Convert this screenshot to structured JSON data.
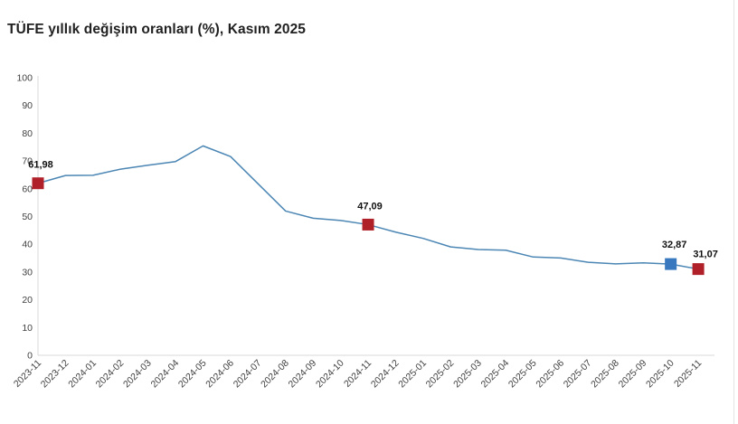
{
  "page": {
    "title": "TÜFE yıllık değişim oranları (%), Kasım 2025"
  },
  "chart_data": {
    "type": "line",
    "title": "TÜFE yıllık değişim oranları (%), Kasım 2025",
    "xlabel": "",
    "ylabel": "",
    "ylim": [
      0,
      100
    ],
    "y_ticks": [
      0,
      10,
      20,
      30,
      40,
      50,
      60,
      70,
      80,
      90,
      100
    ],
    "grid": false,
    "legend": "none",
    "line_color": "#4b86b4",
    "axis_color": "#d9d9d9",
    "tick_label_color": "#404040",
    "data_label_color": "#111111",
    "categories": [
      "2023-11",
      "2023-12",
      "2024-01",
      "2024-02",
      "2024-03",
      "2024-04",
      "2024-05",
      "2024-06",
      "2024-07",
      "2024-08",
      "2024-09",
      "2024-10",
      "2024-11",
      "2024-12",
      "2025-01",
      "2025-02",
      "2025-03",
      "2025-04",
      "2025-05",
      "2025-06",
      "2025-07",
      "2025-08",
      "2025-09",
      "2025-10",
      "2025-11"
    ],
    "series": [
      {
        "name": "TÜFE yıllık değişim oranı (%)",
        "values": [
          61.98,
          64.77,
          64.86,
          67.07,
          68.5,
          69.8,
          75.45,
          71.6,
          61.78,
          51.97,
          49.38,
          48.58,
          47.09,
          44.38,
          42.12,
          39.05,
          38.1,
          37.86,
          35.41,
          35.05,
          33.52,
          32.95,
          33.29,
          32.87,
          31.07
        ]
      }
    ],
    "highlighted_points": [
      {
        "category": "2023-11",
        "value": 61.98,
        "label": "61,98",
        "marker_color": "#b02028"
      },
      {
        "category": "2024-11",
        "value": 47.09,
        "label": "47,09",
        "marker_color": "#b02028"
      },
      {
        "category": "2025-10",
        "value": 32.87,
        "label": "32,87",
        "marker_color": "#3778bf"
      },
      {
        "category": "2025-11",
        "value": 31.07,
        "label": "31,07",
        "marker_color": "#b02028"
      }
    ]
  }
}
